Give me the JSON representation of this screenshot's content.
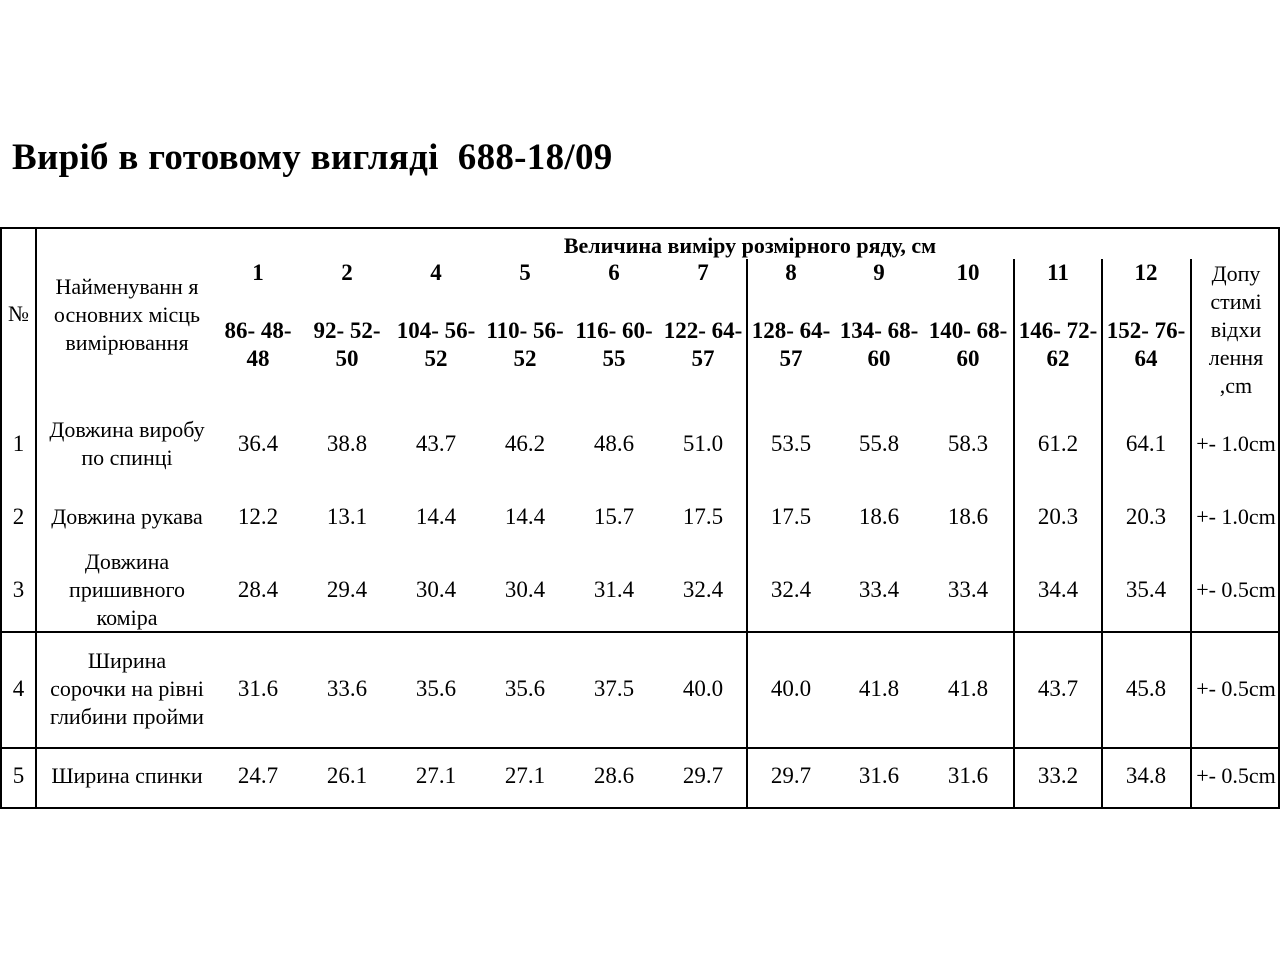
{
  "title": "Виріб в готовому вигляді  688-18/09",
  "table": {
    "no_header": "№",
    "param_header": "Найменуванн я основних місць вимірювання",
    "span_header": "Величина виміру розмірного ряду, см",
    "tolerance_header": "Допу стимі відхи лення ,cm",
    "sizes": [
      {
        "num": "1",
        "label": "86- 48-48"
      },
      {
        "num": "2",
        "label": "92- 52-50"
      },
      {
        "num": "4",
        "label": "104- 56-52"
      },
      {
        "num": "5",
        "label": "110- 56-52"
      },
      {
        "num": "6",
        "label": "116- 60-55"
      },
      {
        "num": "7",
        "label": "122- 64-57"
      },
      {
        "num": "8",
        "label": "128- 64-57"
      },
      {
        "num": "9",
        "label": "134- 68-60"
      },
      {
        "num": "10",
        "label": "140- 68-60"
      },
      {
        "num": "11",
        "label": "146- 72-62"
      },
      {
        "num": "12",
        "label": "152- 76-64"
      }
    ],
    "rows": [
      {
        "no": "1",
        "name": "Довжина виробу по спинці",
        "values": [
          "36.4",
          "38.8",
          "43.7",
          "46.2",
          "48.6",
          "51.0",
          "53.5",
          "55.8",
          "58.3",
          "61.2",
          "64.1"
        ],
        "tolerance": "+- 1.0cm"
      },
      {
        "no": "2",
        "name": "Довжина рукава",
        "values": [
          "12.2",
          "13.1",
          "14.4",
          "14.4",
          "15.7",
          "17.5",
          "17.5",
          "18.6",
          "18.6",
          "20.3",
          "20.3"
        ],
        "tolerance": "+- 1.0cm"
      },
      {
        "no": "3",
        "name": "Довжина пришивного коміра",
        "values": [
          "28.4",
          "29.4",
          "30.4",
          "30.4",
          "31.4",
          "32.4",
          "32.4",
          "33.4",
          "33.4",
          "34.4",
          "35.4"
        ],
        "tolerance": "+- 0.5cm"
      },
      {
        "no": "4",
        "name": "Ширина сорочки на рівні глибини пройми",
        "values": [
          "31.6",
          "33.6",
          "35.6",
          "35.6",
          "37.5",
          "40.0",
          "40.0",
          "41.8",
          "41.8",
          "43.7",
          "45.8"
        ],
        "tolerance": "+- 0.5cm"
      },
      {
        "no": "5",
        "name": "Ширина спинки",
        "values": [
          "24.7",
          "26.1",
          "27.1",
          "27.1",
          "28.6",
          "29.7",
          "29.7",
          "31.6",
          "31.6",
          "33.2",
          "34.8"
        ],
        "tolerance": "+- 0.5cm"
      }
    ]
  }
}
